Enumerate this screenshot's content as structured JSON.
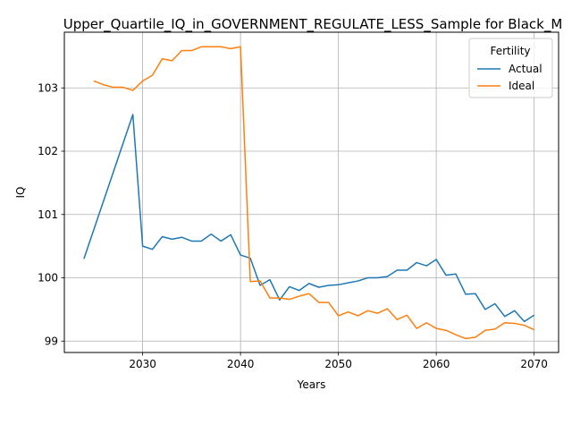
{
  "chart_data": {
    "type": "line",
    "title": "Upper_Quartile_IQ_in_GOVERNMENT_REGULATE_LESS_Sample for Black_M",
    "xlabel": "Years",
    "ylabel": "IQ",
    "xlim": [
      2022,
      2072.5
    ],
    "ylim": [
      98.82,
      103.88
    ],
    "xticks": [
      2030,
      2040,
      2050,
      2060,
      2070
    ],
    "yticks": [
      99,
      100,
      101,
      102,
      103
    ],
    "xtick_labels": [
      "2030",
      "2040",
      "2050",
      "2060",
      "2070"
    ],
    "ytick_labels": [
      "99",
      "100",
      "101",
      "102",
      "103"
    ],
    "grid": true,
    "legend": {
      "title": "Fertility",
      "placement": "top-right"
    },
    "series": [
      {
        "name": "Actual",
        "color": "#1f77b4",
        "x": [
          2024,
          2029,
          2030,
          2031,
          2032,
          2033,
          2034,
          2035,
          2036,
          2037,
          2038,
          2039,
          2040,
          2041,
          2042,
          2043,
          2044,
          2045,
          2046,
          2047,
          2048,
          2049,
          2050,
          2051,
          2052,
          2053,
          2054,
          2055,
          2056,
          2057,
          2058,
          2059,
          2060,
          2061,
          2062,
          2063,
          2064,
          2065,
          2066,
          2067,
          2068,
          2069,
          2070
        ],
        "y": [
          100.3,
          102.58,
          100.5,
          100.45,
          100.65,
          100.61,
          100.64,
          100.58,
          100.58,
          100.69,
          100.58,
          100.68,
          100.36,
          100.31,
          99.88,
          99.97,
          99.65,
          99.86,
          99.8,
          99.91,
          99.85,
          99.88,
          99.89,
          99.92,
          99.95,
          100.0,
          100.0,
          100.02,
          100.12,
          100.12,
          100.24,
          100.19,
          100.29,
          100.04,
          100.06,
          99.74,
          99.75,
          99.5,
          99.59,
          99.39,
          99.48,
          99.31,
          99.41
        ]
      },
      {
        "name": "Ideal",
        "color": "#ff7f0e",
        "x": [
          2025,
          2026,
          2027,
          2028,
          2029,
          2030,
          2031,
          2032,
          2033,
          2034,
          2035,
          2036,
          2037,
          2038,
          2039,
          2040,
          2041,
          2042,
          2043,
          2044,
          2045,
          2046,
          2047,
          2048,
          2049,
          2050,
          2051,
          2052,
          2053,
          2054,
          2055,
          2056,
          2057,
          2058,
          2059,
          2060,
          2061,
          2062,
          2063,
          2064,
          2065,
          2066,
          2067,
          2068,
          2069,
          2070
        ],
        "y": [
          103.11,
          103.05,
          103.01,
          103.01,
          102.96,
          103.11,
          103.2,
          103.46,
          103.43,
          103.59,
          103.59,
          103.65,
          103.65,
          103.65,
          103.62,
          103.65,
          99.94,
          99.95,
          99.68,
          99.68,
          99.66,
          99.71,
          99.75,
          99.61,
          99.61,
          99.4,
          99.46,
          99.4,
          99.48,
          99.44,
          99.51,
          99.34,
          99.41,
          99.2,
          99.29,
          99.2,
          99.17,
          99.1,
          99.04,
          99.06,
          99.17,
          99.19,
          99.29,
          99.28,
          99.25,
          99.18
        ]
      }
    ]
  }
}
